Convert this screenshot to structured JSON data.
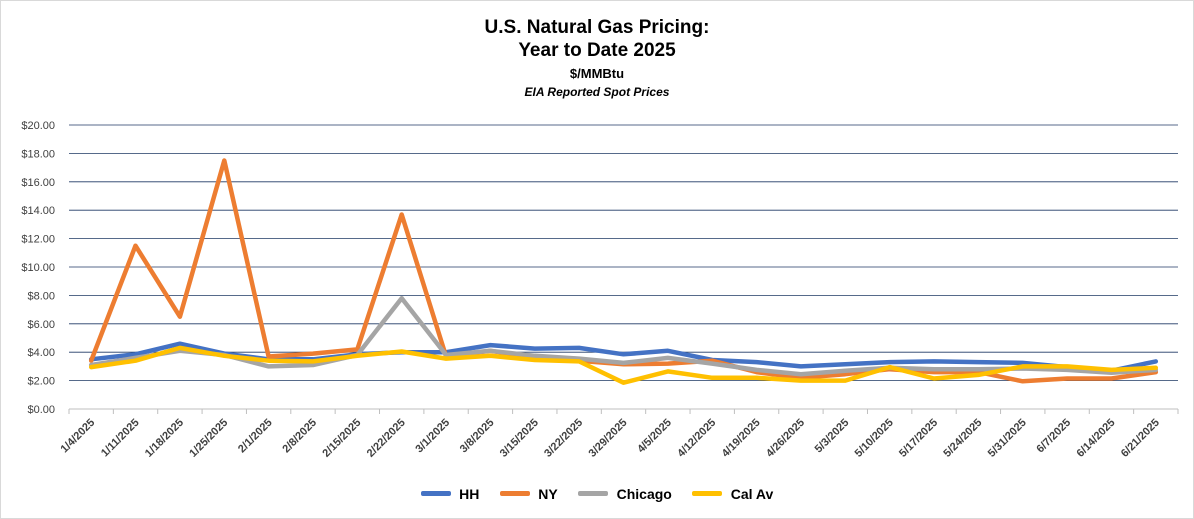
{
  "chart_data": {
    "type": "line",
    "title_line1": "U.S. Natural Gas Pricing:",
    "title_line2": "Year to Date 2025",
    "subtitle": "$/MMBtu",
    "subtitle2": "EIA Reported Spot Prices",
    "xlabel": "",
    "ylabel": "",
    "ylim": [
      0,
      20
    ],
    "y_step": 2,
    "y_tick_labels": [
      "$0.00",
      "$2.00",
      "$4.00",
      "$6.00",
      "$8.00",
      "$10.00",
      "$12.00",
      "$14.00",
      "$16.00",
      "$18.00",
      "$20.00"
    ],
    "grid": true,
    "legend_position": "bottom",
    "categories": [
      "1/4/2025",
      "1/11/2025",
      "1/18/2025",
      "1/25/2025",
      "2/1/2025",
      "2/8/2025",
      "2/15/2025",
      "2/22/2025",
      "3/1/2025",
      "3/8/2025",
      "3/15/2025",
      "3/22/2025",
      "3/29/2025",
      "4/5/2025",
      "4/12/2025",
      "4/19/2025",
      "4/26/2025",
      "5/3/2025",
      "5/10/2025",
      "5/17/2025",
      "5/24/2025",
      "5/31/2025",
      "6/7/2025",
      "6/14/2025",
      "6/21/2025"
    ],
    "series": [
      {
        "name": "HH",
        "color": "#4472c4",
        "values": [
          3.5,
          3.85,
          4.6,
          3.9,
          3.5,
          3.5,
          3.85,
          4.0,
          4.0,
          4.5,
          4.25,
          4.3,
          3.85,
          4.1,
          3.45,
          3.3,
          3.0,
          3.15,
          3.3,
          3.35,
          3.3,
          3.25,
          2.95,
          2.7,
          3.35
        ]
      },
      {
        "name": "NY",
        "color": "#ed7d31",
        "values": [
          3.4,
          11.5,
          6.5,
          17.5,
          3.7,
          3.9,
          4.2,
          13.7,
          3.7,
          4.1,
          3.6,
          3.4,
          3.15,
          3.2,
          3.4,
          2.6,
          2.2,
          2.45,
          2.8,
          2.6,
          2.6,
          1.95,
          2.15,
          2.15,
          2.6
        ]
      },
      {
        "name": "Chicago",
        "color": "#a5a5a5",
        "values": [
          3.1,
          3.6,
          4.1,
          3.8,
          3.0,
          3.1,
          3.8,
          7.8,
          3.8,
          4.1,
          3.75,
          3.55,
          3.25,
          3.6,
          3.2,
          2.75,
          2.45,
          2.7,
          2.9,
          2.8,
          2.8,
          2.85,
          2.75,
          2.55,
          2.75
        ]
      },
      {
        "name": "Cal Av",
        "color": "#ffc000",
        "values": [
          2.95,
          3.4,
          4.3,
          3.75,
          3.4,
          3.35,
          3.75,
          4.05,
          3.55,
          3.75,
          3.45,
          3.35,
          1.85,
          2.65,
          2.2,
          2.2,
          2.0,
          2.0,
          2.95,
          2.15,
          2.4,
          3.0,
          3.0,
          2.75,
          2.9
        ]
      }
    ]
  }
}
